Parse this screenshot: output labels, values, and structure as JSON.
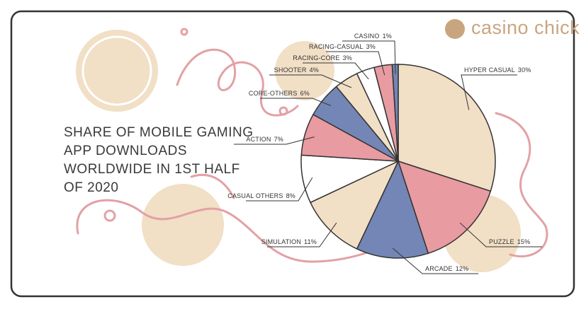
{
  "brand": "casino chick",
  "chart_data": {
    "type": "pie",
    "title": "SHARE OF MOBILE GAMING APP DOWNLOADS WORLDWIDE IN 1ST HALF OF 2020",
    "categories": [
      "HYPER CASUAL",
      "PUZZLE",
      "ARCADE",
      "SIMULATION",
      "CASUAL OTHERS",
      "ACTION",
      "CORE-OTHERS",
      "SHOOTER",
      "RACING-CORE",
      "RACING-CASUAL",
      "CASINO"
    ],
    "values": [
      30,
      15,
      12,
      11,
      8,
      7,
      6,
      4,
      3,
      3,
      1
    ],
    "value_labels": [
      "30%",
      "15%",
      "12%",
      "11%",
      "8%",
      "7%",
      "6%",
      "4%",
      "3%",
      "3%",
      "1%"
    ],
    "colors": [
      "#f1dfc6",
      "#e89ba1",
      "#7486b5",
      "#f1dfc6",
      "#ffffff",
      "#e89ba1",
      "#7486b5",
      "#f1dfc6",
      "#ffffff",
      "#e89ba1",
      "#7486b5"
    ]
  }
}
